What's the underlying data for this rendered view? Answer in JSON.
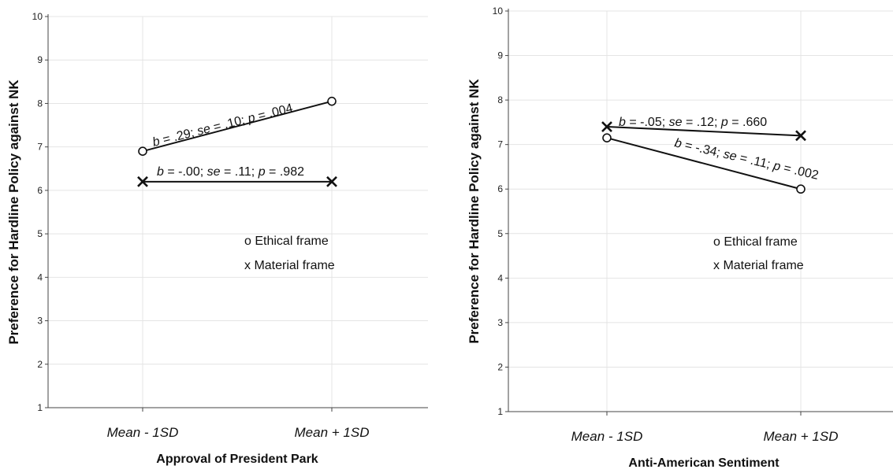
{
  "chart_data": [
    {
      "type": "line",
      "categories": [
        "Mean - 1SD",
        "Mean + 1SD"
      ],
      "category_parts": [
        [
          "Mean - 1",
          "SD"
        ],
        [
          "Mean + 1",
          "SD"
        ]
      ],
      "xlabel": "Approval of President Park",
      "ylabel": "Preference for Hardline Policy against NK",
      "ylim": [
        1,
        10
      ],
      "yticks": [
        1,
        2,
        3,
        4,
        5,
        6,
        7,
        8,
        9,
        10
      ],
      "grid": true,
      "legend_position": "center-right",
      "legend": [
        {
          "marker": "o",
          "label": "Ethical frame"
        },
        {
          "marker": "x",
          "label": "Material frame"
        }
      ],
      "series": [
        {
          "marker": "o",
          "values": [
            6.9,
            8.05
          ],
          "annotation": "b = .29; se = .10; p = .004"
        },
        {
          "marker": "x",
          "values": [
            6.2,
            6.2
          ],
          "annotation": "b = -.00; se = .11; p = .982"
        }
      ]
    },
    {
      "type": "line",
      "categories": [
        "Mean - 1SD",
        "Mean + 1SD"
      ],
      "category_parts": [
        [
          "Mean - 1",
          "SD"
        ],
        [
          "Mean + 1",
          "SD"
        ]
      ],
      "xlabel": "Anti-American Sentiment",
      "ylabel": "Preference for Hardline Policy against NK",
      "ylim": [
        1,
        10
      ],
      "yticks": [
        1,
        2,
        3,
        4,
        5,
        6,
        7,
        8,
        9,
        10
      ],
      "grid": true,
      "legend_position": "center-right",
      "legend": [
        {
          "marker": "o",
          "label": "Ethical frame"
        },
        {
          "marker": "x",
          "label": "Material frame"
        }
      ],
      "series": [
        {
          "marker": "o",
          "values": [
            7.15,
            6.0
          ],
          "annotation": "b = -.34; se = .11; p = .002"
        },
        {
          "marker": "x",
          "values": [
            7.4,
            7.2
          ],
          "annotation": "b = -.05; se = .12; p = .660"
        }
      ]
    }
  ]
}
